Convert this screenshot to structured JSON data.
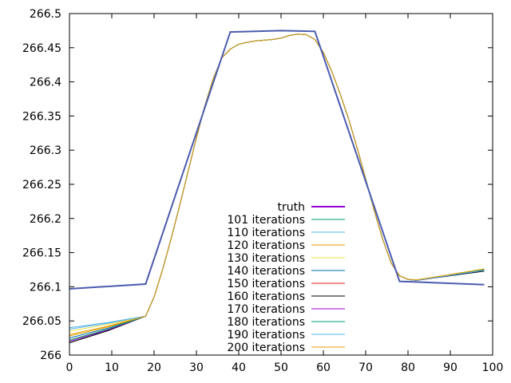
{
  "chart_data": {
    "type": "line",
    "title": "",
    "xlabel": "",
    "ylabel": "",
    "xlim": [
      0,
      100
    ],
    "ylim": [
      266,
      266.5
    ],
    "grid": false,
    "legend_position": "bottom-center",
    "x_ticks": [
      "0",
      "10",
      "20",
      "30",
      "40",
      "50",
      "60",
      "70",
      "80",
      "90",
      "100"
    ],
    "y_ticks": [
      "266",
      "266.05",
      "266.1",
      "266.15",
      "266.2",
      "266.25",
      "266.3",
      "266.35",
      "266.4",
      "266.45",
      "266.5"
    ],
    "truth": {
      "name": "truth",
      "color": "#9400d3",
      "points": [
        [
          0,
          266.097
        ],
        [
          18,
          266.104
        ],
        [
          38,
          266.473
        ],
        [
          50,
          266.475
        ],
        [
          58,
          266.474
        ],
        [
          78,
          266.108
        ],
        [
          98,
          266.103
        ]
      ]
    },
    "iteration_shape": {
      "x": [
        18,
        20,
        22,
        24,
        26,
        28,
        30,
        32,
        34,
        36,
        38,
        40,
        42,
        44,
        46,
        48,
        50,
        52,
        54,
        56,
        58,
        60,
        62,
        64,
        66,
        68,
        70,
        72,
        74,
        76,
        78,
        80,
        82,
        84,
        86,
        88,
        90,
        92,
        94,
        96,
        98
      ],
      "y": [
        266.057,
        266.085,
        266.125,
        266.17,
        266.218,
        266.268,
        266.318,
        266.365,
        266.405,
        266.435,
        266.448,
        266.455,
        266.458,
        266.46,
        266.461,
        266.462,
        266.464,
        266.468,
        266.47,
        266.469,
        266.462,
        266.443,
        266.415,
        266.382,
        266.345,
        266.303,
        266.258,
        266.212,
        266.17,
        266.135,
        266.116,
        266.111,
        266.11,
        266.112,
        266.114,
        266.116,
        266.118,
        266.12,
        266.122,
        266.124,
        266.126
      ]
    },
    "series": [
      {
        "name": "101 iterations",
        "color": "#009e73",
        "start": 266.02,
        "end": 266.124
      },
      {
        "name": "110 iterations",
        "color": "#56b4e9",
        "start": 266.04,
        "end": 266.125
      },
      {
        "name": "120 iterations",
        "color": "#e69f00",
        "start": 266.03,
        "end": 266.126
      },
      {
        "name": "130 iterations",
        "color": "#f0e442",
        "start": 266.035,
        "end": 266.124
      },
      {
        "name": "140 iterations",
        "color": "#0072b2",
        "start": 266.025,
        "end": 266.123
      },
      {
        "name": "150 iterations",
        "color": "#e51e10",
        "start": 266.022,
        "end": 266.125
      },
      {
        "name": "160 iterations",
        "color": "#000000",
        "start": 266.018,
        "end": 266.123
      },
      {
        "name": "170 iterations",
        "color": "#9400d3",
        "start": 266.02,
        "end": 266.124
      },
      {
        "name": "180 iterations",
        "color": "#009e73",
        "start": 266.022,
        "end": 266.125
      },
      {
        "name": "190 iterations",
        "color": "#56b4e9",
        "start": 266.038,
        "end": 266.124
      },
      {
        "name": "200 iterations",
        "color": "#e69f00",
        "start": 266.028,
        "end": 266.126
      }
    ]
  }
}
